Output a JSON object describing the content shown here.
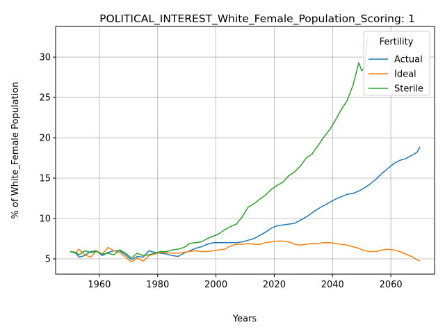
{
  "chart_data": {
    "type": "line",
    "title": "POLITICAL_INTEREST_White_Female_Population_Scoring: 1",
    "xlabel": "Years",
    "ylabel": "% of White_Female Population",
    "xlim": [
      1945,
      2075
    ],
    "ylim": [
      3.1,
      33.8
    ],
    "xticks": [
      1960,
      1980,
      2000,
      2020,
      2040,
      2060
    ],
    "yticks": [
      5,
      10,
      15,
      20,
      25,
      30
    ],
    "grid": true,
    "legend": {
      "title": "Fertility",
      "placement": "top-right"
    },
    "colors": {
      "Actual": "#1f77b4",
      "Ideal": "#ff7f0e",
      "Sterile": "#2ca02c"
    },
    "series": [
      {
        "name": "Actual",
        "x": [
          1950,
          1952,
          1953,
          1955,
          1957,
          1959,
          1961,
          1963,
          1965,
          1967,
          1969,
          1971,
          1973,
          1975,
          1977,
          1979,
          1981,
          1983,
          1985,
          1987,
          1989,
          1991,
          1993,
          1995,
          1997,
          1999,
          2001,
          2003,
          2005,
          2007,
          2009,
          2011,
          2013,
          2015,
          2017,
          2019,
          2021,
          2023,
          2025,
          2027,
          2029,
          2031,
          2033,
          2035,
          2037,
          2039,
          2041,
          2043,
          2045,
          2047,
          2049,
          2051,
          2053,
          2055,
          2057,
          2059,
          2061,
          2063,
          2065,
          2067,
          2069,
          2070
        ],
        "y": [
          5.9,
          5.7,
          5.2,
          5.4,
          5.9,
          6.0,
          5.4,
          5.8,
          6.0,
          6.0,
          5.5,
          4.9,
          5.3,
          5.2,
          6.0,
          5.8,
          5.7,
          5.6,
          5.4,
          5.3,
          5.7,
          6.0,
          6.3,
          6.5,
          6.8,
          7.0,
          7.0,
          7.0,
          7.0,
          7.0,
          7.1,
          7.3,
          7.5,
          7.9,
          8.3,
          8.8,
          9.1,
          9.2,
          9.3,
          9.4,
          9.8,
          10.2,
          10.7,
          11.2,
          11.6,
          12.0,
          12.4,
          12.7,
          13.0,
          13.1,
          13.4,
          13.8,
          14.3,
          14.9,
          15.6,
          16.2,
          16.8,
          17.2,
          17.4,
          17.8,
          18.2,
          18.9
        ]
      },
      {
        "name": "Ideal",
        "x": [
          1950,
          1952,
          1953,
          1955,
          1957,
          1959,
          1961,
          1963,
          1965,
          1967,
          1969,
          1971,
          1973,
          1975,
          1977,
          1979,
          1981,
          1983,
          1985,
          1987,
          1989,
          1991,
          1993,
          1995,
          1997,
          1999,
          2001,
          2003,
          2005,
          2007,
          2009,
          2011,
          2013,
          2015,
          2017,
          2019,
          2021,
          2023,
          2025,
          2027,
          2029,
          2031,
          2033,
          2035,
          2037,
          2039,
          2041,
          2043,
          2045,
          2047,
          2049,
          2051,
          2053,
          2055,
          2057,
          2059,
          2061,
          2063,
          2065,
          2067,
          2069,
          2070
        ],
        "y": [
          5.9,
          5.8,
          6.2,
          5.5,
          5.2,
          6.0,
          5.6,
          6.4,
          6.0,
          5.8,
          5.2,
          4.6,
          5.1,
          4.7,
          5.4,
          5.6,
          5.8,
          5.8,
          5.7,
          5.7,
          5.8,
          5.9,
          6.0,
          5.9,
          5.9,
          6.0,
          6.1,
          6.2,
          6.6,
          6.8,
          6.8,
          6.9,
          6.8,
          6.8,
          7.0,
          7.1,
          7.2,
          7.2,
          7.1,
          6.8,
          6.7,
          6.8,
          6.9,
          6.9,
          7.0,
          7.0,
          6.9,
          6.8,
          6.7,
          6.5,
          6.3,
          6.0,
          5.9,
          5.9,
          6.1,
          6.2,
          6.1,
          5.9,
          5.6,
          5.3,
          4.9,
          4.7
        ]
      },
      {
        "name": "Sterile",
        "x": [
          1950,
          1952,
          1953,
          1955,
          1957,
          1959,
          1961,
          1963,
          1965,
          1967,
          1969,
          1971,
          1973,
          1975,
          1977,
          1979,
          1981,
          1983,
          1985,
          1987,
          1989,
          1991,
          1993,
          1995,
          1997,
          1999,
          2001,
          2003,
          2005,
          2007,
          2009,
          2011,
          2013,
          2015,
          2017,
          2019,
          2021,
          2023,
          2025,
          2027,
          2029,
          2031,
          2033,
          2035,
          2037,
          2039,
          2041,
          2043,
          2045,
          2047,
          2049,
          2050,
          2051,
          2052
        ],
        "y": [
          5.9,
          5.8,
          5.5,
          6.0,
          5.8,
          5.9,
          5.6,
          5.7,
          5.5,
          6.1,
          5.7,
          5.1,
          5.7,
          5.4,
          5.5,
          5.7,
          5.9,
          5.9,
          6.1,
          6.2,
          6.4,
          6.9,
          7.0,
          7.1,
          7.5,
          7.8,
          8.1,
          8.6,
          9.0,
          9.3,
          10.2,
          11.4,
          11.8,
          12.4,
          12.9,
          13.6,
          14.1,
          14.5,
          15.3,
          15.8,
          16.5,
          17.5,
          18.0,
          19.0,
          20.1,
          21.0,
          22.2,
          23.5,
          24.6,
          26.5,
          29.3,
          28.3,
          28.7,
          32.4
        ]
      }
    ]
  }
}
